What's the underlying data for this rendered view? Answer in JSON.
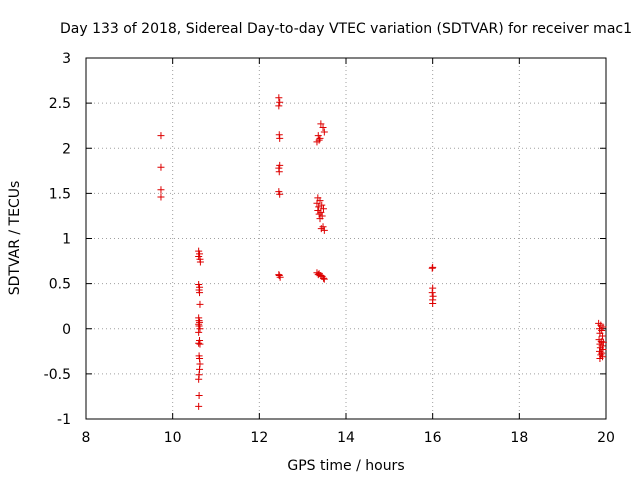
{
  "chart_data": {
    "type": "scatter",
    "title": "Day 133 of 2018, Sidereal Day-to-day VTEC variation (SDTVAR) for receiver mac1",
    "xlabel": "GPS time / hours",
    "ylabel": "SDTVAR / TECUs",
    "xlim": [
      8,
      20
    ],
    "ylim": [
      -1,
      3
    ],
    "x_ticks": [
      "8",
      "10",
      "12",
      "14",
      "16",
      "18",
      "20"
    ],
    "y_ticks": [
      "-1",
      "-0.5",
      "0",
      "0.5",
      "1",
      "1.5",
      "2",
      "2.5",
      "3"
    ],
    "grid": true,
    "marker": "+",
    "color": "#dd0000",
    "series": [
      {
        "name": "SDTVAR",
        "points": [
          [
            9.73,
            2.14
          ],
          [
            9.73,
            1.79
          ],
          [
            9.73,
            1.54
          ],
          [
            9.73,
            1.46
          ],
          [
            10.6,
            0.86
          ],
          [
            10.62,
            0.83
          ],
          [
            10.6,
            0.8
          ],
          [
            10.63,
            0.77
          ],
          [
            10.64,
            0.74
          ],
          [
            10.6,
            0.49
          ],
          [
            10.62,
            0.46
          ],
          [
            10.61,
            0.43
          ],
          [
            10.62,
            0.4
          ],
          [
            10.63,
            0.27
          ],
          [
            10.6,
            0.12
          ],
          [
            10.61,
            0.09
          ],
          [
            10.62,
            0.07
          ],
          [
            10.6,
            0.05
          ],
          [
            10.61,
            0.03
          ],
          [
            10.63,
            0.0
          ],
          [
            10.6,
            -0.04
          ],
          [
            10.62,
            -0.13
          ],
          [
            10.6,
            -0.16
          ],
          [
            10.63,
            -0.17
          ],
          [
            10.61,
            -0.3
          ],
          [
            10.62,
            -0.33
          ],
          [
            10.63,
            -0.39
          ],
          [
            10.62,
            -0.45
          ],
          [
            10.61,
            -0.51
          ],
          [
            10.6,
            -0.56
          ],
          [
            10.61,
            -0.74
          ],
          [
            10.6,
            -0.86
          ],
          [
            12.45,
            2.56
          ],
          [
            12.47,
            2.51
          ],
          [
            12.45,
            2.47
          ],
          [
            12.46,
            2.15
          ],
          [
            12.47,
            2.11
          ],
          [
            12.47,
            1.81
          ],
          [
            12.45,
            1.78
          ],
          [
            12.46,
            1.74
          ],
          [
            12.45,
            1.52
          ],
          [
            12.47,
            1.49
          ],
          [
            12.45,
            0.6
          ],
          [
            12.46,
            0.59
          ],
          [
            12.48,
            0.57
          ],
          [
            13.42,
            2.27
          ],
          [
            13.47,
            2.23
          ],
          [
            13.5,
            2.18
          ],
          [
            13.36,
            2.14
          ],
          [
            13.4,
            2.11
          ],
          [
            13.33,
            2.07
          ],
          [
            13.38,
            2.09
          ],
          [
            13.35,
            1.45
          ],
          [
            13.4,
            1.42
          ],
          [
            13.33,
            1.39
          ],
          [
            13.44,
            1.37
          ],
          [
            13.37,
            1.35
          ],
          [
            13.48,
            1.33
          ],
          [
            13.35,
            1.31
          ],
          [
            13.42,
            1.29
          ],
          [
            13.38,
            1.27
          ],
          [
            13.45,
            1.25
          ],
          [
            13.4,
            1.22
          ],
          [
            13.47,
            1.13
          ],
          [
            13.43,
            1.11
          ],
          [
            13.5,
            1.09
          ],
          [
            13.33,
            0.62
          ],
          [
            13.38,
            0.61
          ],
          [
            13.36,
            0.6
          ],
          [
            13.42,
            0.59
          ],
          [
            13.45,
            0.58
          ],
          [
            13.48,
            0.56
          ],
          [
            13.5,
            0.55
          ],
          [
            16.0,
            0.68
          ],
          [
            15.99,
            0.67
          ],
          [
            16.0,
            0.45
          ],
          [
            15.99,
            0.4
          ],
          [
            16.01,
            0.36
          ],
          [
            16.0,
            0.32
          ],
          [
            16.0,
            0.28
          ],
          [
            19.83,
            0.06
          ],
          [
            19.88,
            0.04
          ],
          [
            19.93,
            0.02
          ],
          [
            19.85,
            0.0
          ],
          [
            19.9,
            -0.02
          ],
          [
            19.86,
            -0.05
          ],
          [
            19.92,
            -0.08
          ],
          [
            19.84,
            -0.12
          ],
          [
            19.89,
            -0.14
          ],
          [
            19.94,
            -0.15
          ],
          [
            19.86,
            -0.17
          ],
          [
            19.91,
            -0.19
          ],
          [
            19.87,
            -0.21
          ],
          [
            19.93,
            -0.23
          ],
          [
            19.85,
            -0.25
          ],
          [
            19.9,
            -0.27
          ],
          [
            19.88,
            -0.29
          ],
          [
            19.92,
            -0.31
          ],
          [
            19.86,
            -0.33
          ]
        ]
      }
    ]
  }
}
